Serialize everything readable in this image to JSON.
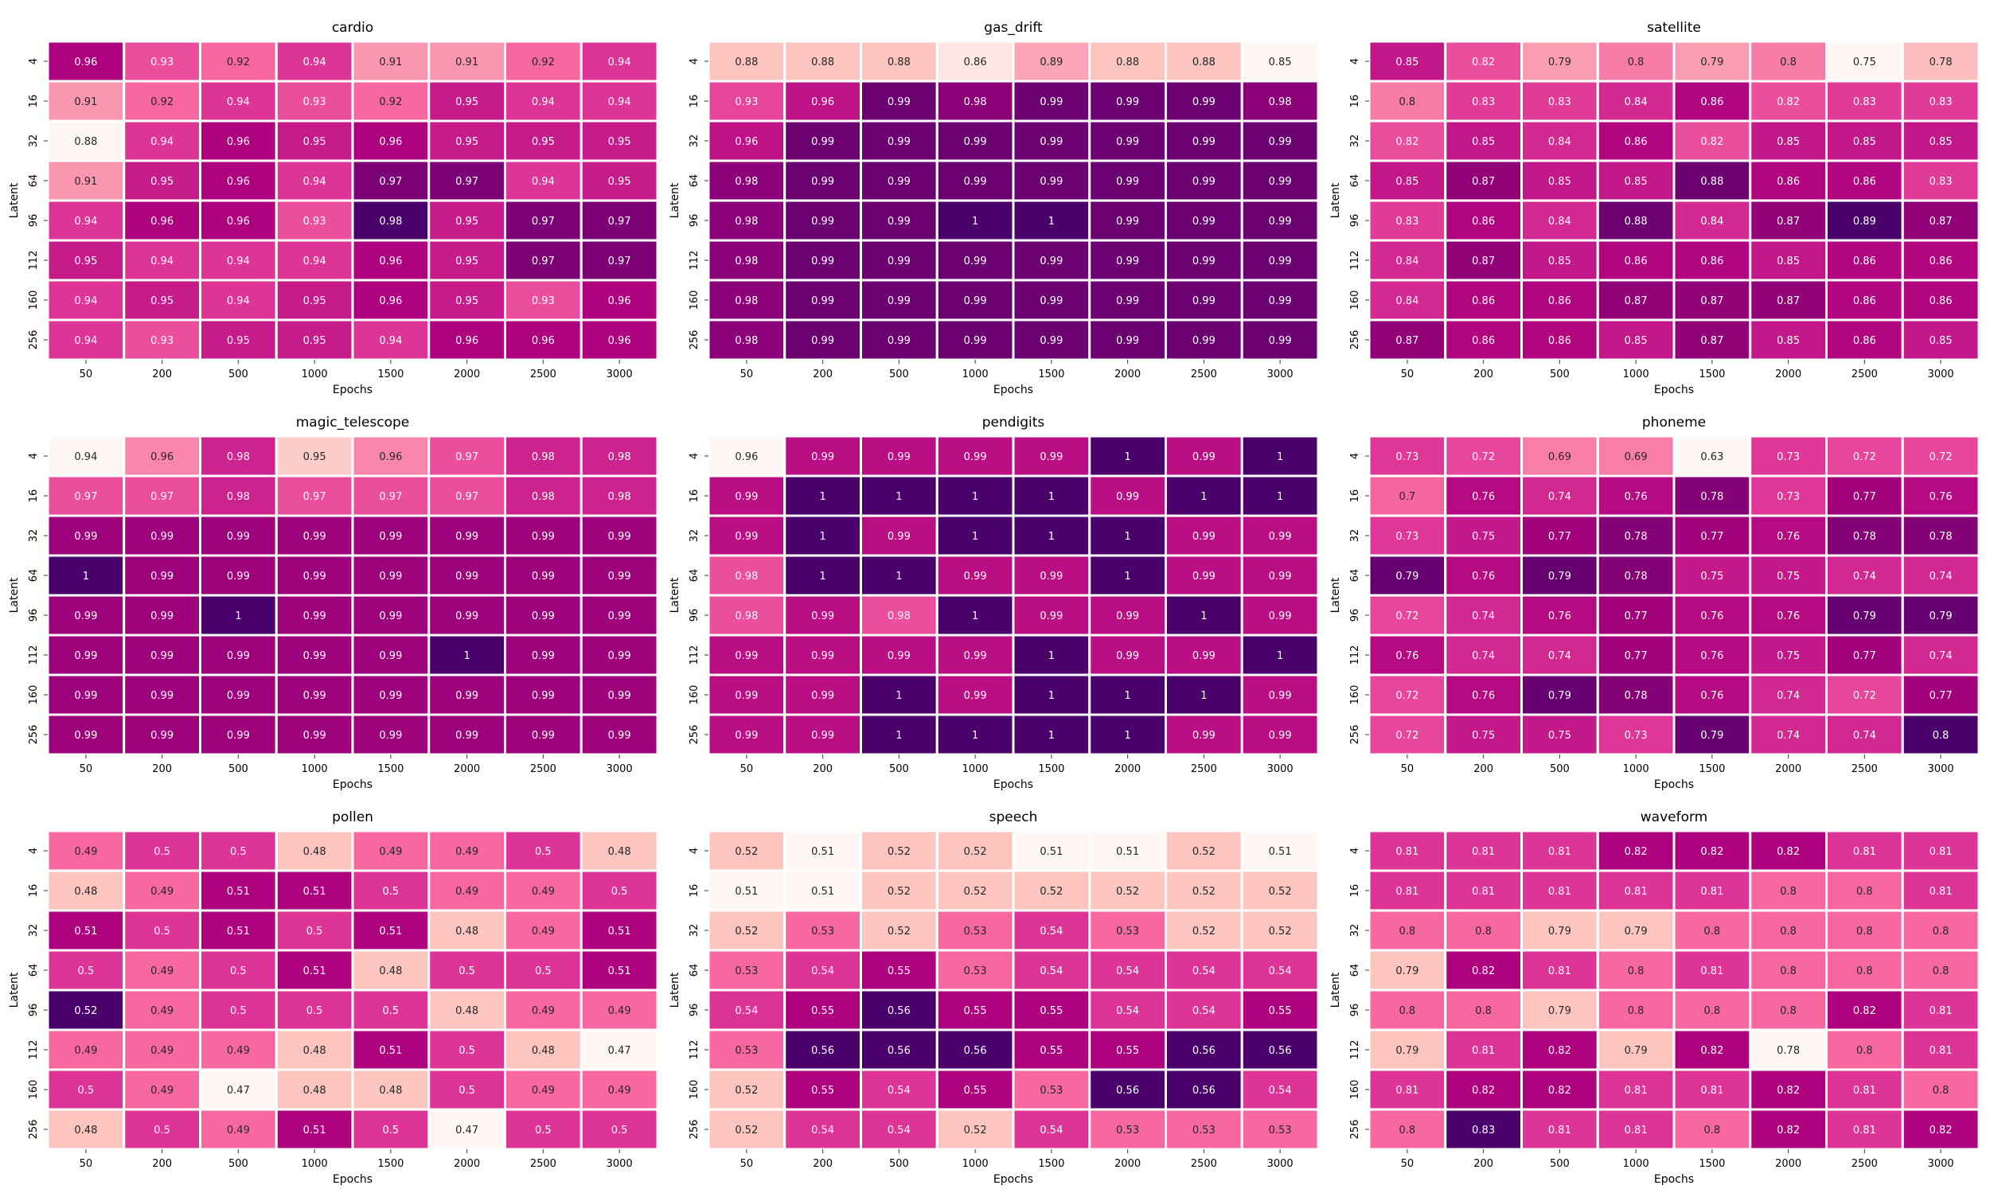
{
  "chart_data": [
    {
      "type": "heatmap",
      "title": "cardio",
      "xlabel": "Epochs",
      "ylabel": "Latent",
      "x": [
        "50",
        "200",
        "500",
        "1000",
        "1500",
        "2000",
        "2500",
        "3000"
      ],
      "y": [
        "4",
        "16",
        "32",
        "64",
        "96",
        "112",
        "160",
        "256"
      ],
      "values": [
        [
          0.96,
          0.93,
          0.92,
          0.94,
          0.91,
          0.91,
          0.92,
          0.94
        ],
        [
          0.91,
          0.92,
          0.94,
          0.93,
          0.92,
          0.95,
          0.94,
          0.94
        ],
        [
          0.88,
          0.94,
          0.96,
          0.95,
          0.96,
          0.95,
          0.95,
          0.95
        ],
        [
          0.91,
          0.95,
          0.96,
          0.94,
          0.97,
          0.97,
          0.94,
          0.95
        ],
        [
          0.94,
          0.96,
          0.96,
          0.93,
          0.98,
          0.95,
          0.97,
          0.97
        ],
        [
          0.95,
          0.94,
          0.94,
          0.94,
          0.96,
          0.95,
          0.97,
          0.97
        ],
        [
          0.94,
          0.95,
          0.94,
          0.95,
          0.96,
          0.95,
          0.93,
          0.96
        ],
        [
          0.94,
          0.93,
          0.95,
          0.95,
          0.94,
          0.96,
          0.96,
          0.96
        ]
      ]
    },
    {
      "type": "heatmap",
      "title": "gas_drift",
      "xlabel": "Epochs",
      "ylabel": "Latent",
      "x": [
        "50",
        "200",
        "500",
        "1000",
        "1500",
        "2000",
        "2500",
        "3000"
      ],
      "y": [
        "4",
        "16",
        "32",
        "64",
        "96",
        "112",
        "160",
        "256"
      ],
      "values": [
        [
          0.88,
          0.88,
          0.88,
          0.86,
          0.89,
          0.88,
          0.88,
          0.85
        ],
        [
          0.93,
          0.96,
          0.99,
          0.98,
          0.99,
          0.99,
          0.99,
          0.98
        ],
        [
          0.96,
          0.99,
          0.99,
          0.99,
          0.99,
          0.99,
          0.99,
          0.99
        ],
        [
          0.98,
          0.99,
          0.99,
          0.99,
          0.99,
          0.99,
          0.99,
          0.99
        ],
        [
          0.98,
          0.99,
          0.99,
          1,
          1,
          0.99,
          0.99,
          0.99
        ],
        [
          0.98,
          0.99,
          0.99,
          0.99,
          0.99,
          0.99,
          0.99,
          0.99
        ],
        [
          0.98,
          0.99,
          0.99,
          0.99,
          0.99,
          0.99,
          0.99,
          0.99
        ],
        [
          0.98,
          0.99,
          0.99,
          0.99,
          0.99,
          0.99,
          0.99,
          0.99
        ]
      ]
    },
    {
      "type": "heatmap",
      "title": "satellite",
      "xlabel": "Epochs",
      "ylabel": "Latent",
      "x": [
        "50",
        "200",
        "500",
        "1000",
        "1500",
        "2000",
        "2500",
        "3000"
      ],
      "y": [
        "4",
        "16",
        "32",
        "64",
        "96",
        "112",
        "160",
        "256"
      ],
      "values": [
        [
          0.85,
          0.82,
          0.79,
          0.8,
          0.79,
          0.8,
          0.75,
          0.78
        ],
        [
          0.8,
          0.83,
          0.83,
          0.84,
          0.86,
          0.82,
          0.83,
          0.83
        ],
        [
          0.82,
          0.85,
          0.84,
          0.86,
          0.82,
          0.85,
          0.85,
          0.85
        ],
        [
          0.85,
          0.87,
          0.85,
          0.85,
          0.88,
          0.86,
          0.86,
          0.83
        ],
        [
          0.83,
          0.86,
          0.84,
          0.88,
          0.84,
          0.87,
          0.89,
          0.87
        ],
        [
          0.84,
          0.87,
          0.85,
          0.86,
          0.86,
          0.85,
          0.86,
          0.86
        ],
        [
          0.84,
          0.86,
          0.86,
          0.87,
          0.87,
          0.87,
          0.86,
          0.86
        ],
        [
          0.87,
          0.86,
          0.86,
          0.85,
          0.87,
          0.85,
          0.86,
          0.85
        ]
      ]
    },
    {
      "type": "heatmap",
      "title": "magic_telescope",
      "xlabel": "Epochs",
      "ylabel": "Latent",
      "x": [
        "50",
        "200",
        "500",
        "1000",
        "1500",
        "2000",
        "2500",
        "3000"
      ],
      "y": [
        "4",
        "16",
        "32",
        "64",
        "96",
        "112",
        "160",
        "256"
      ],
      "values": [
        [
          0.94,
          0.96,
          0.98,
          0.95,
          0.96,
          0.97,
          0.98,
          0.98
        ],
        [
          0.97,
          0.97,
          0.98,
          0.97,
          0.97,
          0.97,
          0.98,
          0.98
        ],
        [
          0.99,
          0.99,
          0.99,
          0.99,
          0.99,
          0.99,
          0.99,
          0.99
        ],
        [
          1,
          0.99,
          0.99,
          0.99,
          0.99,
          0.99,
          0.99,
          0.99
        ],
        [
          0.99,
          0.99,
          1,
          0.99,
          0.99,
          0.99,
          0.99,
          0.99
        ],
        [
          0.99,
          0.99,
          0.99,
          0.99,
          0.99,
          1,
          0.99,
          0.99
        ],
        [
          0.99,
          0.99,
          0.99,
          0.99,
          0.99,
          0.99,
          0.99,
          0.99
        ],
        [
          0.99,
          0.99,
          0.99,
          0.99,
          0.99,
          0.99,
          0.99,
          0.99
        ]
      ]
    },
    {
      "type": "heatmap",
      "title": "pendigits",
      "xlabel": "Epochs",
      "ylabel": "Latent",
      "x": [
        "50",
        "200",
        "500",
        "1000",
        "1500",
        "2000",
        "2500",
        "3000"
      ],
      "y": [
        "4",
        "16",
        "32",
        "64",
        "96",
        "112",
        "160",
        "256"
      ],
      "values": [
        [
          0.96,
          0.99,
          0.99,
          0.99,
          0.99,
          1,
          0.99,
          1
        ],
        [
          0.99,
          1,
          1,
          1,
          1,
          0.99,
          1,
          1
        ],
        [
          0.99,
          1,
          0.99,
          1,
          1,
          1,
          0.99,
          0.99
        ],
        [
          0.98,
          1,
          1,
          0.99,
          0.99,
          1,
          0.99,
          0.99
        ],
        [
          0.98,
          0.99,
          0.98,
          1,
          0.99,
          0.99,
          1,
          0.99
        ],
        [
          0.99,
          0.99,
          0.99,
          0.99,
          1,
          0.99,
          0.99,
          1
        ],
        [
          0.99,
          0.99,
          1,
          0.99,
          1,
          1,
          1,
          0.99
        ],
        [
          0.99,
          0.99,
          1,
          1,
          1,
          1,
          0.99,
          0.99
        ]
      ]
    },
    {
      "type": "heatmap",
      "title": "phoneme",
      "xlabel": "Epochs",
      "ylabel": "Latent",
      "x": [
        "50",
        "200",
        "500",
        "1000",
        "1500",
        "2000",
        "2500",
        "3000"
      ],
      "y": [
        "4",
        "16",
        "32",
        "64",
        "96",
        "112",
        "160",
        "256"
      ],
      "values": [
        [
          0.73,
          0.72,
          0.69,
          0.69,
          0.63,
          0.73,
          0.72,
          0.72
        ],
        [
          0.7,
          0.76,
          0.74,
          0.76,
          0.78,
          0.73,
          0.77,
          0.76
        ],
        [
          0.73,
          0.75,
          0.77,
          0.78,
          0.77,
          0.76,
          0.78,
          0.78
        ],
        [
          0.79,
          0.76,
          0.79,
          0.78,
          0.75,
          0.75,
          0.74,
          0.74
        ],
        [
          0.72,
          0.74,
          0.76,
          0.77,
          0.76,
          0.76,
          0.79,
          0.79
        ],
        [
          0.76,
          0.74,
          0.74,
          0.77,
          0.76,
          0.75,
          0.77,
          0.74
        ],
        [
          0.72,
          0.76,
          0.79,
          0.78,
          0.76,
          0.74,
          0.72,
          0.77
        ],
        [
          0.72,
          0.75,
          0.75,
          0.73,
          0.79,
          0.74,
          0.74,
          0.8
        ]
      ]
    },
    {
      "type": "heatmap",
      "title": "pollen",
      "xlabel": "Epochs",
      "ylabel": "Latent",
      "x": [
        "50",
        "200",
        "500",
        "1000",
        "1500",
        "2000",
        "2500",
        "3000"
      ],
      "y": [
        "4",
        "16",
        "32",
        "64",
        "96",
        "112",
        "160",
        "256"
      ],
      "values": [
        [
          0.49,
          0.5,
          0.5,
          0.48,
          0.49,
          0.49,
          0.5,
          0.48
        ],
        [
          0.48,
          0.49,
          0.51,
          0.51,
          0.5,
          0.49,
          0.49,
          0.5
        ],
        [
          0.51,
          0.5,
          0.51,
          0.5,
          0.51,
          0.48,
          0.49,
          0.51
        ],
        [
          0.5,
          0.49,
          0.5,
          0.51,
          0.48,
          0.5,
          0.5,
          0.51
        ],
        [
          0.52,
          0.49,
          0.5,
          0.5,
          0.5,
          0.48,
          0.49,
          0.49
        ],
        [
          0.49,
          0.49,
          0.49,
          0.48,
          0.51,
          0.5,
          0.48,
          0.47
        ],
        [
          0.5,
          0.49,
          0.47,
          0.48,
          0.48,
          0.5,
          0.49,
          0.49
        ],
        [
          0.48,
          0.5,
          0.49,
          0.51,
          0.5,
          0.47,
          0.5,
          0.5
        ]
      ]
    },
    {
      "type": "heatmap",
      "title": "speech",
      "xlabel": "Epochs",
      "ylabel": "Latent",
      "x": [
        "50",
        "200",
        "500",
        "1000",
        "1500",
        "2000",
        "2500",
        "3000"
      ],
      "y": [
        "4",
        "16",
        "32",
        "64",
        "96",
        "112",
        "160",
        "256"
      ],
      "values": [
        [
          0.52,
          0.51,
          0.52,
          0.52,
          0.51,
          0.51,
          0.52,
          0.51
        ],
        [
          0.51,
          0.51,
          0.52,
          0.52,
          0.52,
          0.52,
          0.52,
          0.52
        ],
        [
          0.52,
          0.53,
          0.52,
          0.53,
          0.54,
          0.53,
          0.52,
          0.52
        ],
        [
          0.53,
          0.54,
          0.55,
          0.53,
          0.54,
          0.54,
          0.54,
          0.54
        ],
        [
          0.54,
          0.55,
          0.56,
          0.55,
          0.55,
          0.54,
          0.54,
          0.55
        ],
        [
          0.53,
          0.56,
          0.56,
          0.56,
          0.55,
          0.55,
          0.56,
          0.56
        ],
        [
          0.52,
          0.55,
          0.54,
          0.55,
          0.53,
          0.56,
          0.56,
          0.54
        ],
        [
          0.52,
          0.54,
          0.54,
          0.52,
          0.54,
          0.53,
          0.53,
          0.53
        ]
      ]
    },
    {
      "type": "heatmap",
      "title": "waveform",
      "xlabel": "Epochs",
      "ylabel": "Latent",
      "x": [
        "50",
        "200",
        "500",
        "1000",
        "1500",
        "2000",
        "2500",
        "3000"
      ],
      "y": [
        "4",
        "16",
        "32",
        "64",
        "96",
        "112",
        "160",
        "256"
      ],
      "values": [
        [
          0.81,
          0.81,
          0.81,
          0.82,
          0.82,
          0.82,
          0.81,
          0.81
        ],
        [
          0.81,
          0.81,
          0.81,
          0.81,
          0.81,
          0.8,
          0.8,
          0.81
        ],
        [
          0.8,
          0.8,
          0.79,
          0.79,
          0.8,
          0.8,
          0.8,
          0.8
        ],
        [
          0.79,
          0.82,
          0.81,
          0.8,
          0.81,
          0.8,
          0.8,
          0.8
        ],
        [
          0.8,
          0.8,
          0.79,
          0.8,
          0.8,
          0.8,
          0.82,
          0.81
        ],
        [
          0.79,
          0.81,
          0.82,
          0.79,
          0.82,
          0.78,
          0.8,
          0.81
        ],
        [
          0.81,
          0.82,
          0.82,
          0.81,
          0.81,
          0.82,
          0.81,
          0.8
        ],
        [
          0.8,
          0.83,
          0.81,
          0.81,
          0.8,
          0.82,
          0.81,
          0.82
        ]
      ]
    }
  ]
}
